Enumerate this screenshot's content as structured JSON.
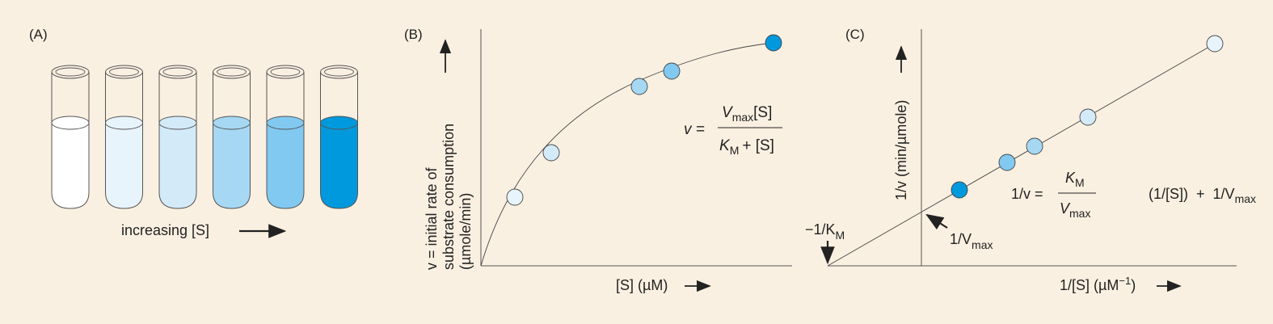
{
  "panelA": {
    "label": "(A)",
    "caption": "increasing [S]",
    "tube_colors": [
      "#ffffff",
      "#e8f4fc",
      "#d3eaf9",
      "#a6d8f4",
      "#82c9f1",
      "#0099dd"
    ]
  },
  "panelB": {
    "label": "(B)",
    "ylabel_lines": [
      "v = initial rate of",
      "substrate consumption",
      "(µmole/min)"
    ],
    "xlabel": "[S] (µM)",
    "eq_lhs": "v =",
    "eq_num_v": "V",
    "eq_num_sub": "max",
    "eq_num_s": "[S]",
    "eq_den_k": "K",
    "eq_den_sub": "M",
    "eq_den_s": "+ [S]",
    "point_colors": [
      "#e8f4fc",
      "#d3eaf9",
      "#a6d8f4",
      "#82c9f1",
      "#0099dd"
    ]
  },
  "panelC": {
    "label": "(C)",
    "ylabel": "1/v (min/µmole)",
    "xlabel_a": "1/[S] (µM",
    "xlabel_sup": "−1",
    "xlabel_b": ")",
    "intercept_y_a": "1/V",
    "intercept_y_sub": "max",
    "intercept_x_a": "−1/K",
    "intercept_x_sub": "M",
    "eq_lhs": "1/v =",
    "eq_num": "K",
    "eq_num_sub": "M",
    "eq_den": "V",
    "eq_den_sub": "max",
    "eq_mid": "(1/[S])  +  1/V",
    "eq_mid_sub": "max",
    "point_colors": [
      "#0099dd",
      "#82c9f1",
      "#a6d8f4",
      "#d3eaf9",
      "#e8f4fc"
    ]
  },
  "colors": {
    "ink": "#222222",
    "axis": "#555555",
    "background": "#faf0e1"
  }
}
